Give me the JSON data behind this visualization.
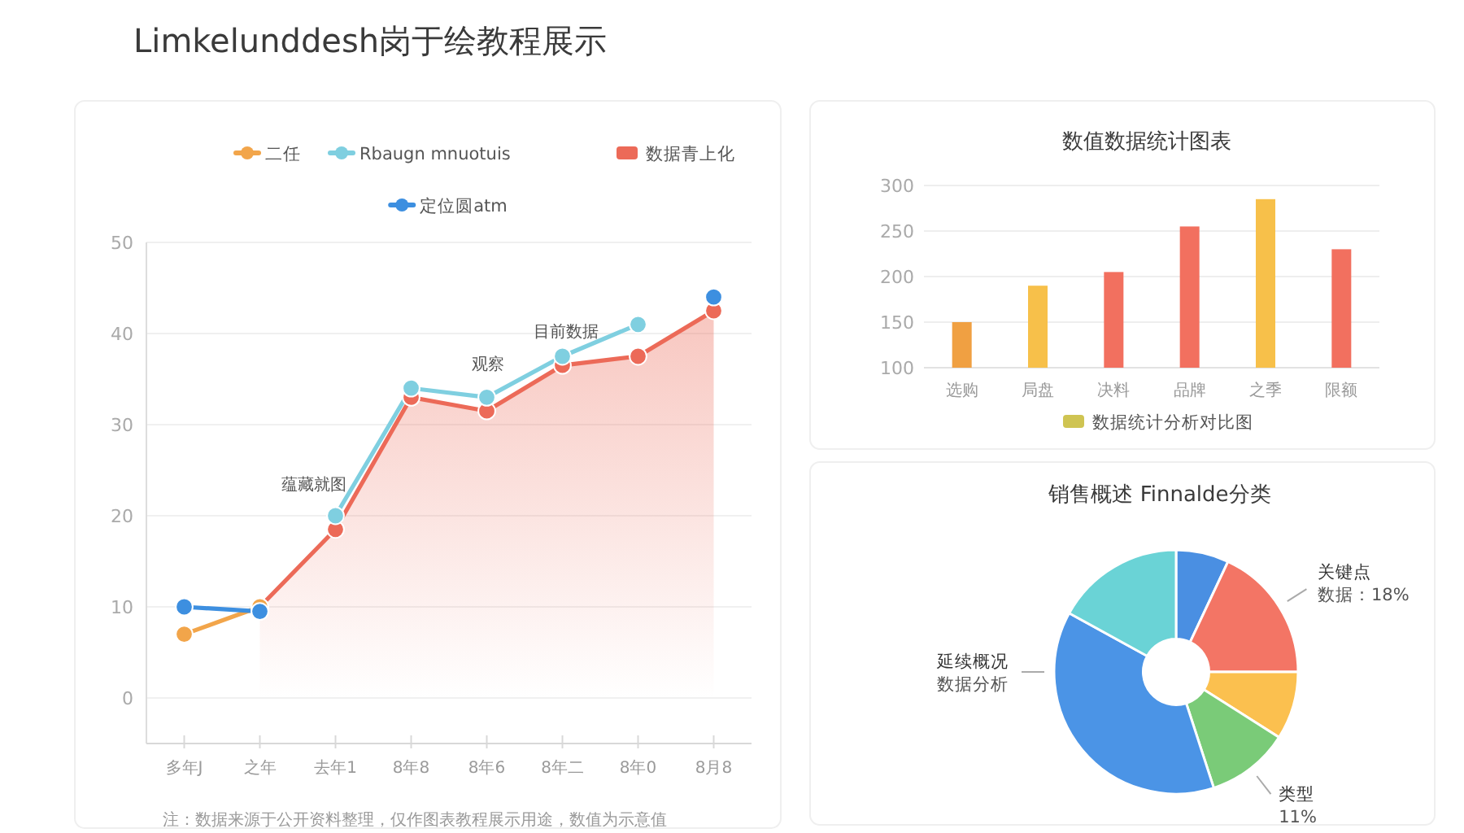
{
  "chart_data": [
    {
      "type": "line",
      "title": "Limkelunddesh岗于绘教程展示",
      "categories": [
        "多年J",
        "之年",
        "去年1",
        "8年8",
        "8年6",
        "8年二",
        "8年0",
        "8月8"
      ],
      "series": [
        {
          "name": "二任",
          "color": "#f2a54a",
          "values": [
            7,
            10,
            null,
            null,
            null,
            null,
            null,
            null
          ]
        },
        {
          "name": "Rbaugn mnuotuis",
          "color": "#7fcfe0",
          "values": [
            null,
            null,
            20,
            34,
            33,
            37.5,
            41,
            null
          ]
        },
        {
          "name": "数据青上化",
          "color": "#ec6a58",
          "type": "area",
          "values": [
            null,
            10,
            18.5,
            33,
            31.5,
            36.5,
            37.5,
            42.5
          ]
        },
        {
          "name": "定位圆atm",
          "color": "#3d8fe0",
          "values": [
            10,
            9.5,
            null,
            null,
            null,
            null,
            null,
            44
          ]
        }
      ],
      "ylim": [
        -5,
        50
      ],
      "yticks": [
        0,
        10,
        20,
        30,
        40,
        50
      ],
      "grid": "y",
      "legend": "top",
      "marker": "circle",
      "annotations": [
        "蕴藏就图",
        "观察",
        "目前数据",
        "注：数据来源于公开资料整理，仅作图表教程展示用途，数值为示意值"
      ]
    },
    {
      "type": "bar",
      "title": "数值数据统计图表",
      "categories": [
        "选购",
        "局盘",
        "决料",
        "品牌",
        "之季",
        "限额"
      ],
      "series": [
        {
          "name": "数据统计分析对比图",
          "color": "#cfc452",
          "colors": [
            "#f0a042",
            "#f7c04a",
            "#f2705f",
            "#f2705f",
            "#f7c04a",
            "#f2705f"
          ],
          "values": [
            150,
            190,
            205,
            255,
            285,
            230
          ]
        }
      ],
      "ylim": [
        100,
        300
      ],
      "yticks": [
        100,
        150,
        200,
        250,
        300
      ],
      "grid": "y",
      "legend": "bottom"
    },
    {
      "type": "donut",
      "title": "销售概述 Finnalde分类",
      "categories": [
        null,
        "关键点",
        null,
        "类型",
        "延续概况",
        null
      ],
      "values": [
        7,
        18,
        9,
        11,
        38,
        17
      ],
      "value_labels": [
        null,
        "数据：18%",
        null,
        "11%",
        "数据分析",
        null
      ],
      "colors": [
        "#4a8fe2",
        "#f37565",
        "#fbc04f",
        "#7acb78",
        "#4b94e6",
        "#6ad3d6"
      ]
    }
  ]
}
